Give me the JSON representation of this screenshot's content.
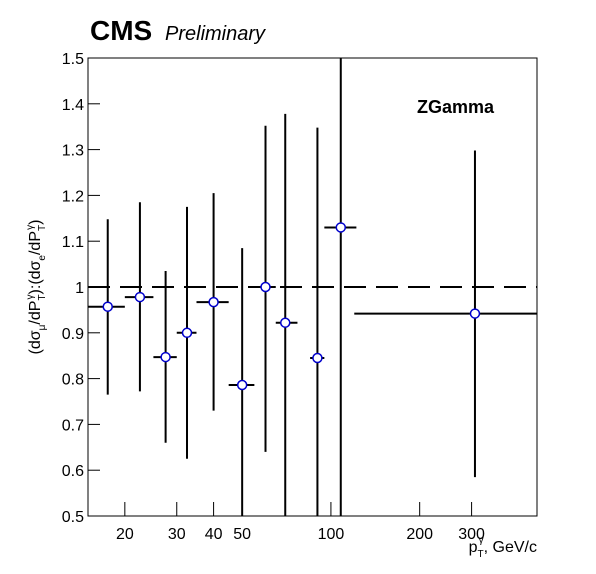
{
  "chart_data": {
    "type": "errorbar",
    "title": "CMS",
    "subtitle": "Preliminary",
    "annotation": "ZGamma",
    "y_label_parts": [
      "(dσ",
      "μ",
      "/dP",
      "T",
      "γ",
      "):(dσ",
      "e",
      "/dP",
      "T",
      "γ",
      ")"
    ],
    "x_label_parts": [
      "p",
      "T",
      "γ",
      ", GeV/c"
    ],
    "x": [
      17.5,
      22.5,
      27.5,
      32.5,
      40,
      50,
      60,
      70,
      90,
      108,
      308
    ],
    "x_low": [
      15,
      20,
      25,
      30,
      35,
      45,
      55,
      65,
      85,
      95,
      120
    ],
    "x_high": [
      20,
      25,
      30,
      35,
      45,
      55,
      65,
      77,
      95,
      122,
      500
    ],
    "values": [
      0.957,
      0.978,
      0.847,
      0.9,
      0.967,
      0.786,
      1.0,
      0.922,
      0.845,
      1.13,
      0.942
    ],
    "errors_low": [
      0.192,
      0.206,
      0.187,
      0.275,
      0.237,
      0.3,
      0.36,
      0.456,
      0.5,
      0.63,
      0.357
    ],
    "errors_high": [
      0.191,
      0.207,
      0.188,
      0.275,
      0.238,
      0.299,
      0.352,
      0.456,
      0.503,
      0.63,
      0.356
    ],
    "marker_color": "#0000cc",
    "reference_line": 1,
    "xscale": "log",
    "xlim": [
      15,
      500
    ],
    "xticks": [
      20,
      30,
      40,
      50,
      100,
      200,
      300
    ],
    "ylim": [
      0.5,
      1.5
    ],
    "yticks": [
      0.5,
      0.6,
      0.7,
      0.8,
      0.9,
      1,
      1.1,
      1.2,
      1.3,
      1.4,
      1.5
    ]
  }
}
